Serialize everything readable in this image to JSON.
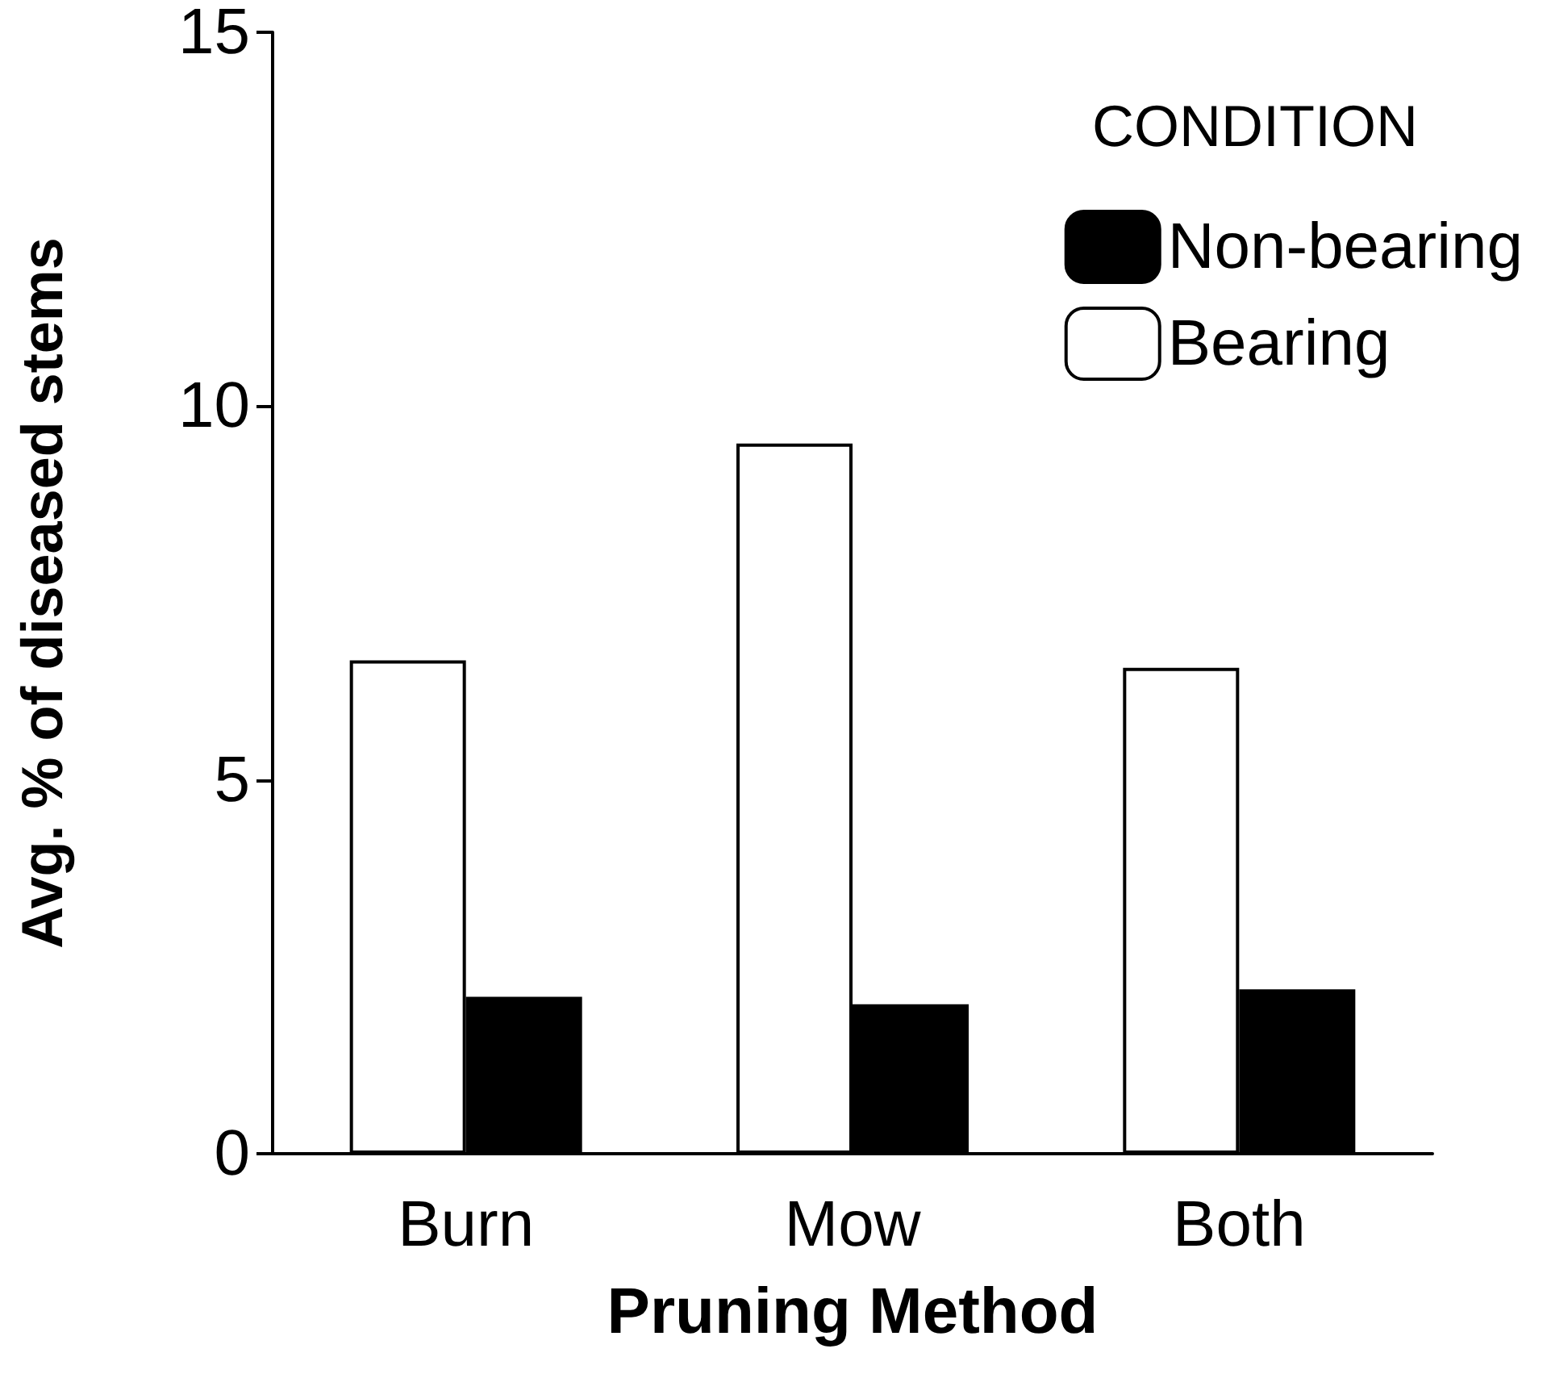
{
  "chart_data": {
    "type": "bar",
    "xlabel": "Pruning Method",
    "ylabel": "Avg. % of diseased stems",
    "legend_title": "CONDITION",
    "categories": [
      "Burn",
      "Mow",
      "Both"
    ],
    "series": [
      {
        "name": "Bearing",
        "color": "#ffffff",
        "values": [
          6.6,
          9.5,
          6.5
        ]
      },
      {
        "name": "Non-bearing",
        "color": "#000000",
        "values": [
          2.1,
          2.0,
          2.2
        ]
      }
    ],
    "ylim": [
      0,
      15
    ],
    "yticks": [
      0,
      5,
      10,
      15
    ],
    "grid": false,
    "legend": "top right"
  }
}
